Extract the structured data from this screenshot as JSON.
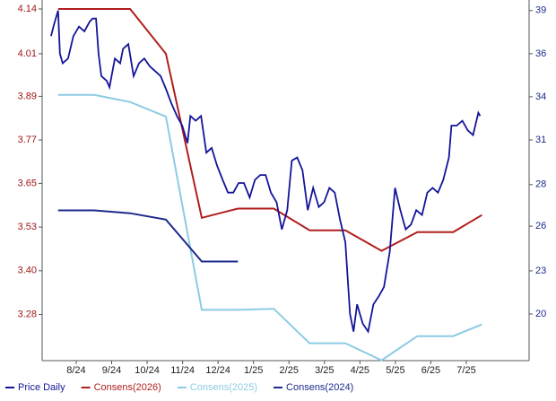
{
  "chart_data": {
    "type": "line",
    "xlim": [
      -0.96,
      12.77
    ],
    "xticks": [
      {
        "value": 0,
        "label": "8/24"
      },
      {
        "value": 1,
        "label": "9/24"
      },
      {
        "value": 2,
        "label": "10/24"
      },
      {
        "value": 3,
        "label": "11/24"
      },
      {
        "value": 4,
        "label": "12/24"
      },
      {
        "value": 5,
        "label": "1/25"
      },
      {
        "value": 6,
        "label": "2/25"
      },
      {
        "value": 7,
        "label": "3/25"
      },
      {
        "value": 8,
        "label": "4/25"
      },
      {
        "value": 9,
        "label": "5/25"
      },
      {
        "value": 10,
        "label": "6/25"
      },
      {
        "value": 11,
        "label": "7/25"
      }
    ],
    "ylim": [
      3.15,
      4.14
    ],
    "yticks": [
      {
        "value": 3.28,
        "label": "3.28"
      },
      {
        "value": 3.403,
        "label": "3.40"
      },
      {
        "value": 3.526,
        "label": "3.53"
      },
      {
        "value": 3.649,
        "label": "3.65"
      },
      {
        "value": 3.771,
        "label": "3.77"
      },
      {
        "value": 3.894,
        "label": "3.89"
      },
      {
        "value": 4.014,
        "label": "4.01"
      },
      {
        "value": 4.14,
        "label": "4.14"
      }
    ],
    "y2lim": [
      17.08,
      39.1
    ],
    "y2ticks": [
      {
        "value": 20,
        "label": "20"
      },
      {
        "value": 22.7,
        "label": "23"
      },
      {
        "value": 25.5,
        "label": "26"
      },
      {
        "value": 28.1,
        "label": "28"
      },
      {
        "value": 30.9,
        "label": "31"
      },
      {
        "value": 33.6,
        "label": "34"
      },
      {
        "value": 36.3,
        "label": "36"
      },
      {
        "value": 39,
        "label": "39"
      }
    ],
    "legend": "bottom",
    "series": [
      {
        "name": "Price Daily",
        "color": "#14149a",
        "axis": "y2",
        "x": [
          -0.71,
          -0.63,
          -0.51,
          -0.46,
          -0.38,
          -0.23,
          -0.08,
          0.08,
          0.23,
          0.38,
          0.46,
          0.56,
          0.63,
          0.71,
          0.86,
          0.94,
          1.09,
          1.24,
          1.32,
          1.47,
          1.62,
          1.77,
          1.92,
          2.08,
          2.23,
          2.38,
          2.53,
          2.68,
          2.84,
          2.99,
          3.14,
          3.22,
          3.37,
          3.52,
          3.67,
          3.82,
          3.97,
          4.13,
          4.28,
          4.43,
          4.58,
          4.73,
          4.89,
          5.04,
          5.19,
          5.34,
          5.49,
          5.65,
          5.8,
          5.95,
          6.08,
          6.23,
          6.38,
          6.53,
          6.68,
          6.84,
          6.99,
          7.14,
          7.29,
          7.44,
          7.59,
          7.72,
          7.82,
          7.92,
          8.08,
          8.23,
          8.38,
          8.53,
          8.68,
          8.84,
          8.99,
          9.14,
          9.29,
          9.44,
          9.59,
          9.75,
          9.9,
          10.05,
          10.2,
          10.35,
          10.51,
          10.58,
          10.73,
          10.89,
          11.04,
          11.19,
          11.34,
          11.39
        ],
        "values": [
          37.4,
          38.1,
          39.0,
          36.3,
          35.7,
          36.0,
          37.4,
          38.0,
          37.7,
          38.3,
          38.5,
          38.5,
          36.3,
          34.9,
          34.6,
          34.2,
          36.0,
          35.7,
          36.6,
          36.9,
          34.9,
          35.7,
          36.0,
          35.5,
          35.2,
          34.9,
          34.1,
          33.2,
          32.4,
          31.8,
          30.7,
          32.4,
          32.1,
          32.4,
          30.1,
          30.4,
          29.3,
          28.4,
          27.6,
          27.6,
          28.2,
          28.2,
          27.3,
          28.4,
          28.7,
          28.7,
          27.6,
          27.0,
          25.3,
          26.5,
          29.6,
          29.8,
          29.0,
          26.5,
          27.9,
          26.7,
          27.0,
          27.9,
          27.6,
          25.9,
          24.5,
          20.0,
          18.9,
          20.6,
          19.4,
          18.9,
          20.6,
          21.1,
          21.7,
          23.9,
          27.9,
          26.5,
          25.3,
          25.6,
          26.5,
          26.2,
          27.6,
          27.9,
          27.6,
          28.4,
          29.8,
          31.8,
          31.8,
          32.1,
          31.5,
          31.2,
          32.6,
          32.4
        ]
      },
      {
        "name": "Consens(2026)",
        "color": "#b01e1e",
        "x": [
          -0.51,
          1.52,
          2.53,
          3.54,
          4.56,
          5.57,
          6.58,
          7.59,
          8.61,
          9.62,
          10.63,
          11.44
        ],
        "values": [
          4.14,
          4.14,
          4.014,
          3.552,
          3.578,
          3.578,
          3.517,
          3.517,
          3.459,
          3.512,
          3.512,
          3.56
        ]
      },
      {
        "name": "Consens(2025)",
        "color": "#8ccbe2",
        "x": [
          -0.51,
          0.51,
          1.52,
          2.53,
          3.54,
          4.56,
          5.57,
          6.58,
          7.59,
          8.61,
          9.62,
          10.63,
          11.44
        ],
        "values": [
          3.898,
          3.898,
          3.878,
          3.837,
          3.293,
          3.293,
          3.296,
          3.199,
          3.199,
          3.151,
          3.219,
          3.219,
          3.252
        ]
      },
      {
        "name": "Consens(2024)",
        "color": "#1c2a8c",
        "x": [
          -0.51,
          0.51,
          1.52,
          2.53,
          3.54,
          4.56
        ],
        "values": [
          3.573,
          3.573,
          3.565,
          3.547,
          3.429,
          3.429
        ]
      }
    ]
  }
}
